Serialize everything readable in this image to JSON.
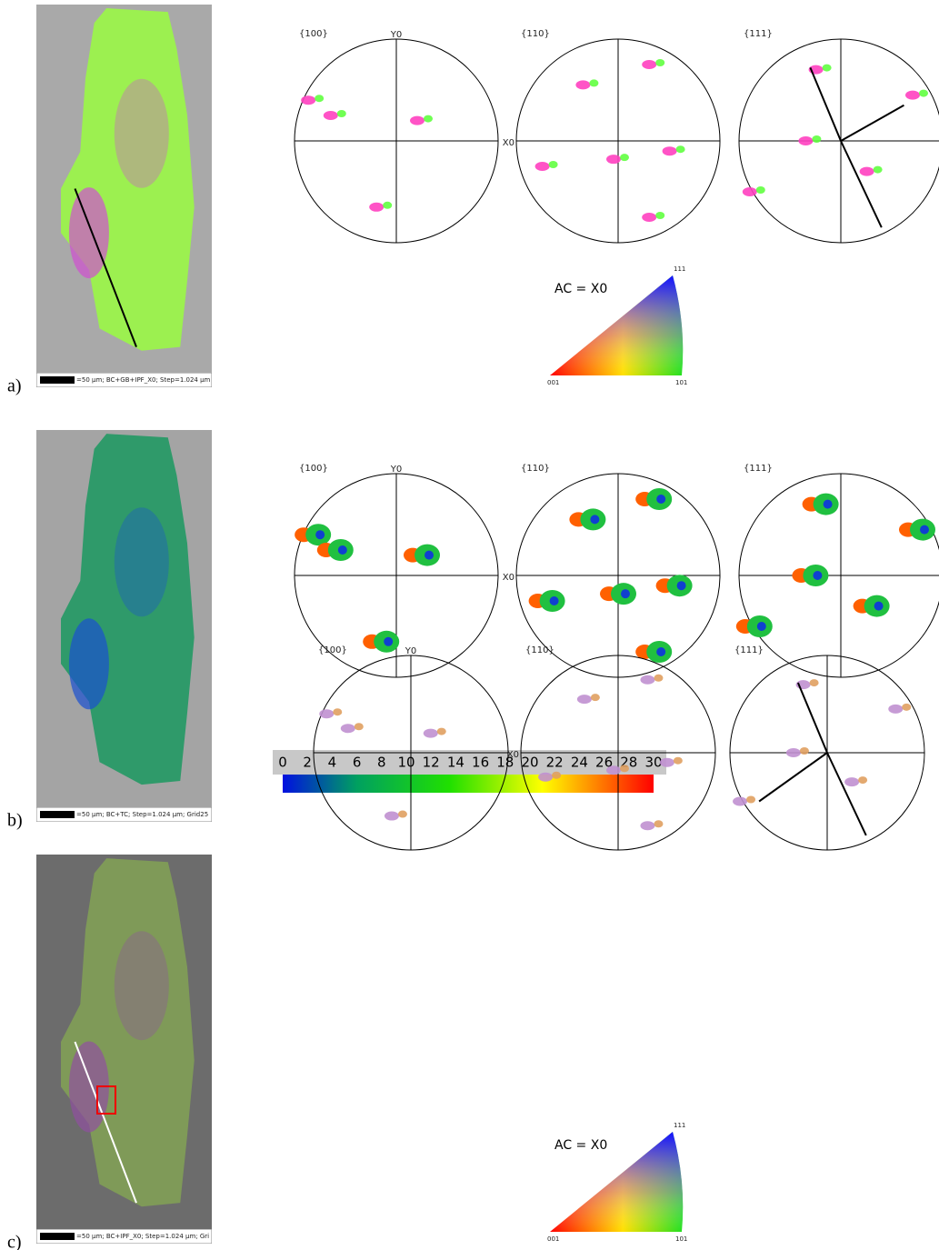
{
  "panels": [
    {
      "label": "a)",
      "scale_bar": "=50 µm; BC+GB+IPF_X0; Step=1.024 µm",
      "pole_figures": [
        "{100}",
        "{110}",
        "{111}"
      ],
      "y_axis": "Y0",
      "x_axis": "X0",
      "key": {
        "title": "AC = X0",
        "top": "111",
        "left": "001",
        "right": "101"
      }
    },
    {
      "label": "b)",
      "scale_bar": "=50 µm; BC+TC; Step=1.024 µm; Grid25",
      "pole_figures": [
        "{100}",
        "{110}",
        "{111}"
      ],
      "y_axis": "Y0",
      "x_axis": "X0",
      "colorbar": {
        "ticks": [
          0,
          2,
          4,
          6,
          8,
          10,
          12,
          14,
          16,
          18,
          20,
          22,
          24,
          26,
          28,
          30
        ]
      }
    },
    {
      "label": "c)",
      "scale_bar": "=50 µm; BC+IPF_X0; Step=1.024 µm; Gri",
      "pole_figures": [
        "{100}",
        "{110}",
        "{111}"
      ],
      "y_axis": "Y0",
      "x_axis": "X0",
      "key": {
        "title": "AC = X0",
        "top": "111",
        "left": "001",
        "right": "101"
      }
    }
  ]
}
